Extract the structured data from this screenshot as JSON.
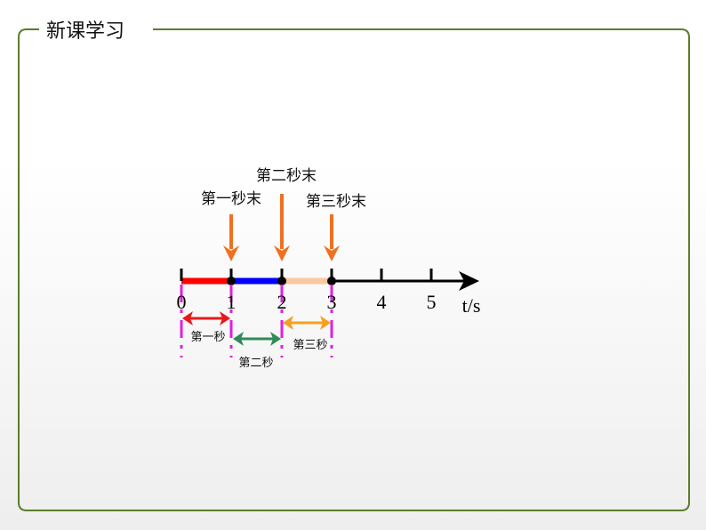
{
  "slide": {
    "title": "新课学习",
    "frame_color": "#5b7d2c"
  },
  "diagram": {
    "axis_label": "t/s",
    "ticks": [
      "0",
      "1",
      "2",
      "3",
      "4",
      "5"
    ],
    "moment_labels": [
      "第一秒末",
      "第二秒末",
      "第三秒末"
    ],
    "interval_labels": [
      "第一秒",
      "第二秒",
      "第三秒"
    ],
    "colors": {
      "segment_1": "#ff0000",
      "segment_2": "#0000ff",
      "segment_3": "#fac8a0",
      "moment_arrow": "#f07020",
      "interval_1_arrow": "#e8191c",
      "interval_2_arrow": "#2e8b57",
      "interval_3_arrow": "#f5a020",
      "guide_lines": "#e020e0"
    }
  }
}
